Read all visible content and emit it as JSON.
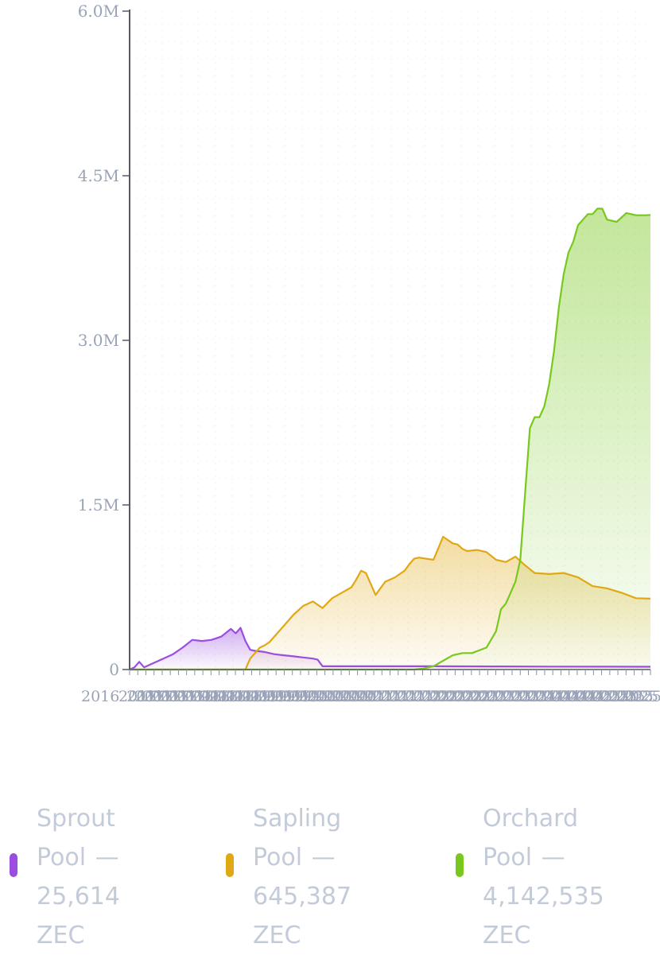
{
  "chart_data": {
    "type": "area",
    "y_ticks": [
      "0",
      "1.5M",
      "3.0M",
      "4.5M",
      "6.0M"
    ],
    "ylim": [
      0,
      6000000
    ],
    "x_tick_labels": [
      "2016",
      "2017",
      "2017",
      "2017",
      "2017",
      "2017",
      "2017",
      "2017",
      "2018",
      "2018",
      "2018",
      "2018",
      "2018",
      "2018",
      "2018",
      "2019",
      "2019",
      "2019",
      "2019",
      "2019",
      "2019",
      "2019",
      "2020",
      "2020",
      "2020",
      "2020",
      "2020",
      "2020",
      "2020",
      "2021",
      "2021",
      "2021",
      "2021",
      "2021",
      "2021",
      "2021",
      "2022",
      "2022",
      "2022",
      "2022",
      "2022",
      "2022",
      "2022",
      "2023",
      "2023",
      "2023",
      "2023",
      "2023",
      "2023",
      "2023",
      "2024",
      "2024",
      "2024",
      "2024",
      "2024",
      "2024",
      "2024",
      "2025",
      "2025",
      "2025",
      "2025",
      "2025",
      "2025",
      "2025",
      "2025"
    ],
    "grid": true,
    "x_range": [
      "2016-10",
      "2025-10"
    ],
    "series": [
      {
        "name": "Sprout Pool",
        "color": "#9b4de0",
        "x": [
          "2016-10",
          "2016-11",
          "2016-12",
          "2017-01",
          "2017-03",
          "2017-05",
          "2017-07",
          "2017-09",
          "2017-11",
          "2018-01",
          "2018-03",
          "2018-05",
          "2018-07",
          "2018-08",
          "2018-09",
          "2018-10",
          "2018-11",
          "2018-12",
          "2019-02",
          "2019-04",
          "2019-06",
          "2019-08",
          "2019-10",
          "2019-12",
          "2020-01",
          "2020-02",
          "2020-06",
          "2021-01",
          "2022-01",
          "2023-01",
          "2024-01",
          "2025-01",
          "2025-10"
        ],
        "values": [
          0,
          20000,
          70000,
          20000,
          60000,
          100000,
          140000,
          200000,
          270000,
          260000,
          270000,
          300000,
          370000,
          330000,
          380000,
          260000,
          180000,
          170000,
          160000,
          140000,
          130000,
          120000,
          110000,
          100000,
          90000,
          30000,
          30000,
          30000,
          30000,
          28000,
          27000,
          26000,
          25614
        ]
      },
      {
        "name": "Sapling Pool",
        "color": "#e0a814",
        "x": [
          "2016-10",
          "2018-10",
          "2018-11",
          "2018-12",
          "2019-01",
          "2019-02",
          "2019-03",
          "2019-04",
          "2019-06",
          "2019-08",
          "2019-10",
          "2019-12",
          "2020-02",
          "2020-04",
          "2020-06",
          "2020-08",
          "2020-09",
          "2020-10",
          "2020-11",
          "2021-01",
          "2021-03",
          "2021-05",
          "2021-07",
          "2021-08",
          "2021-09",
          "2021-10",
          "2022-01",
          "2022-03",
          "2022-05",
          "2022-06",
          "2022-07",
          "2022-08",
          "2022-10",
          "2022-12",
          "2023-02",
          "2023-04",
          "2023-06",
          "2023-08",
          "2023-10",
          "2024-01",
          "2024-04",
          "2024-07",
          "2024-10",
          "2025-01",
          "2025-04",
          "2025-07",
          "2025-10"
        ],
        "values": [
          0,
          0,
          100000,
          150000,
          200000,
          220000,
          250000,
          300000,
          400000,
          500000,
          580000,
          620000,
          560000,
          650000,
          700000,
          750000,
          820000,
          900000,
          880000,
          680000,
          800000,
          840000,
          900000,
          960000,
          1010000,
          1020000,
          1000000,
          1210000,
          1150000,
          1140000,
          1100000,
          1080000,
          1090000,
          1070000,
          1000000,
          980000,
          1030000,
          950000,
          880000,
          870000,
          880000,
          840000,
          760000,
          740000,
          700000,
          650000,
          645387
        ]
      },
      {
        "name": "Orchard Pool",
        "color": "#78c81e",
        "x": [
          "2016-10",
          "2021-09",
          "2021-11",
          "2022-01",
          "2022-03",
          "2022-05",
          "2022-07",
          "2022-09",
          "2022-12",
          "2023-02",
          "2023-03",
          "2023-04",
          "2023-06",
          "2023-07",
          "2023-08",
          "2023-09",
          "2023-10",
          "2023-11",
          "2023-12",
          "2024-01",
          "2024-02",
          "2024-03",
          "2024-04",
          "2024-05",
          "2024-06",
          "2024-07",
          "2024-08",
          "2024-09",
          "2024-10",
          "2024-11",
          "2024-12",
          "2025-01",
          "2025-03",
          "2025-05",
          "2025-07",
          "2025-09",
          "2025-10"
        ],
        "values": [
          0,
          0,
          10000,
          30000,
          80000,
          130000,
          150000,
          150000,
          200000,
          350000,
          550000,
          600000,
          800000,
          1000000,
          1600000,
          2200000,
          2300000,
          2300000,
          2400000,
          2600000,
          2900000,
          3300000,
          3600000,
          3800000,
          3900000,
          4050000,
          4100000,
          4150000,
          4150000,
          4200000,
          4200000,
          4100000,
          4080000,
          4160000,
          4140000,
          4140000,
          4142535
        ]
      }
    ]
  },
  "legend": [
    {
      "label": "Sprout Pool — 25,614 ZEC",
      "color": "#9b4de0"
    },
    {
      "label": "Sapling Pool — 645,387 ZEC",
      "color": "#e0a814"
    },
    {
      "label": "Orchard Pool — 4,142,535 ZEC",
      "color": "#78c81e"
    }
  ]
}
